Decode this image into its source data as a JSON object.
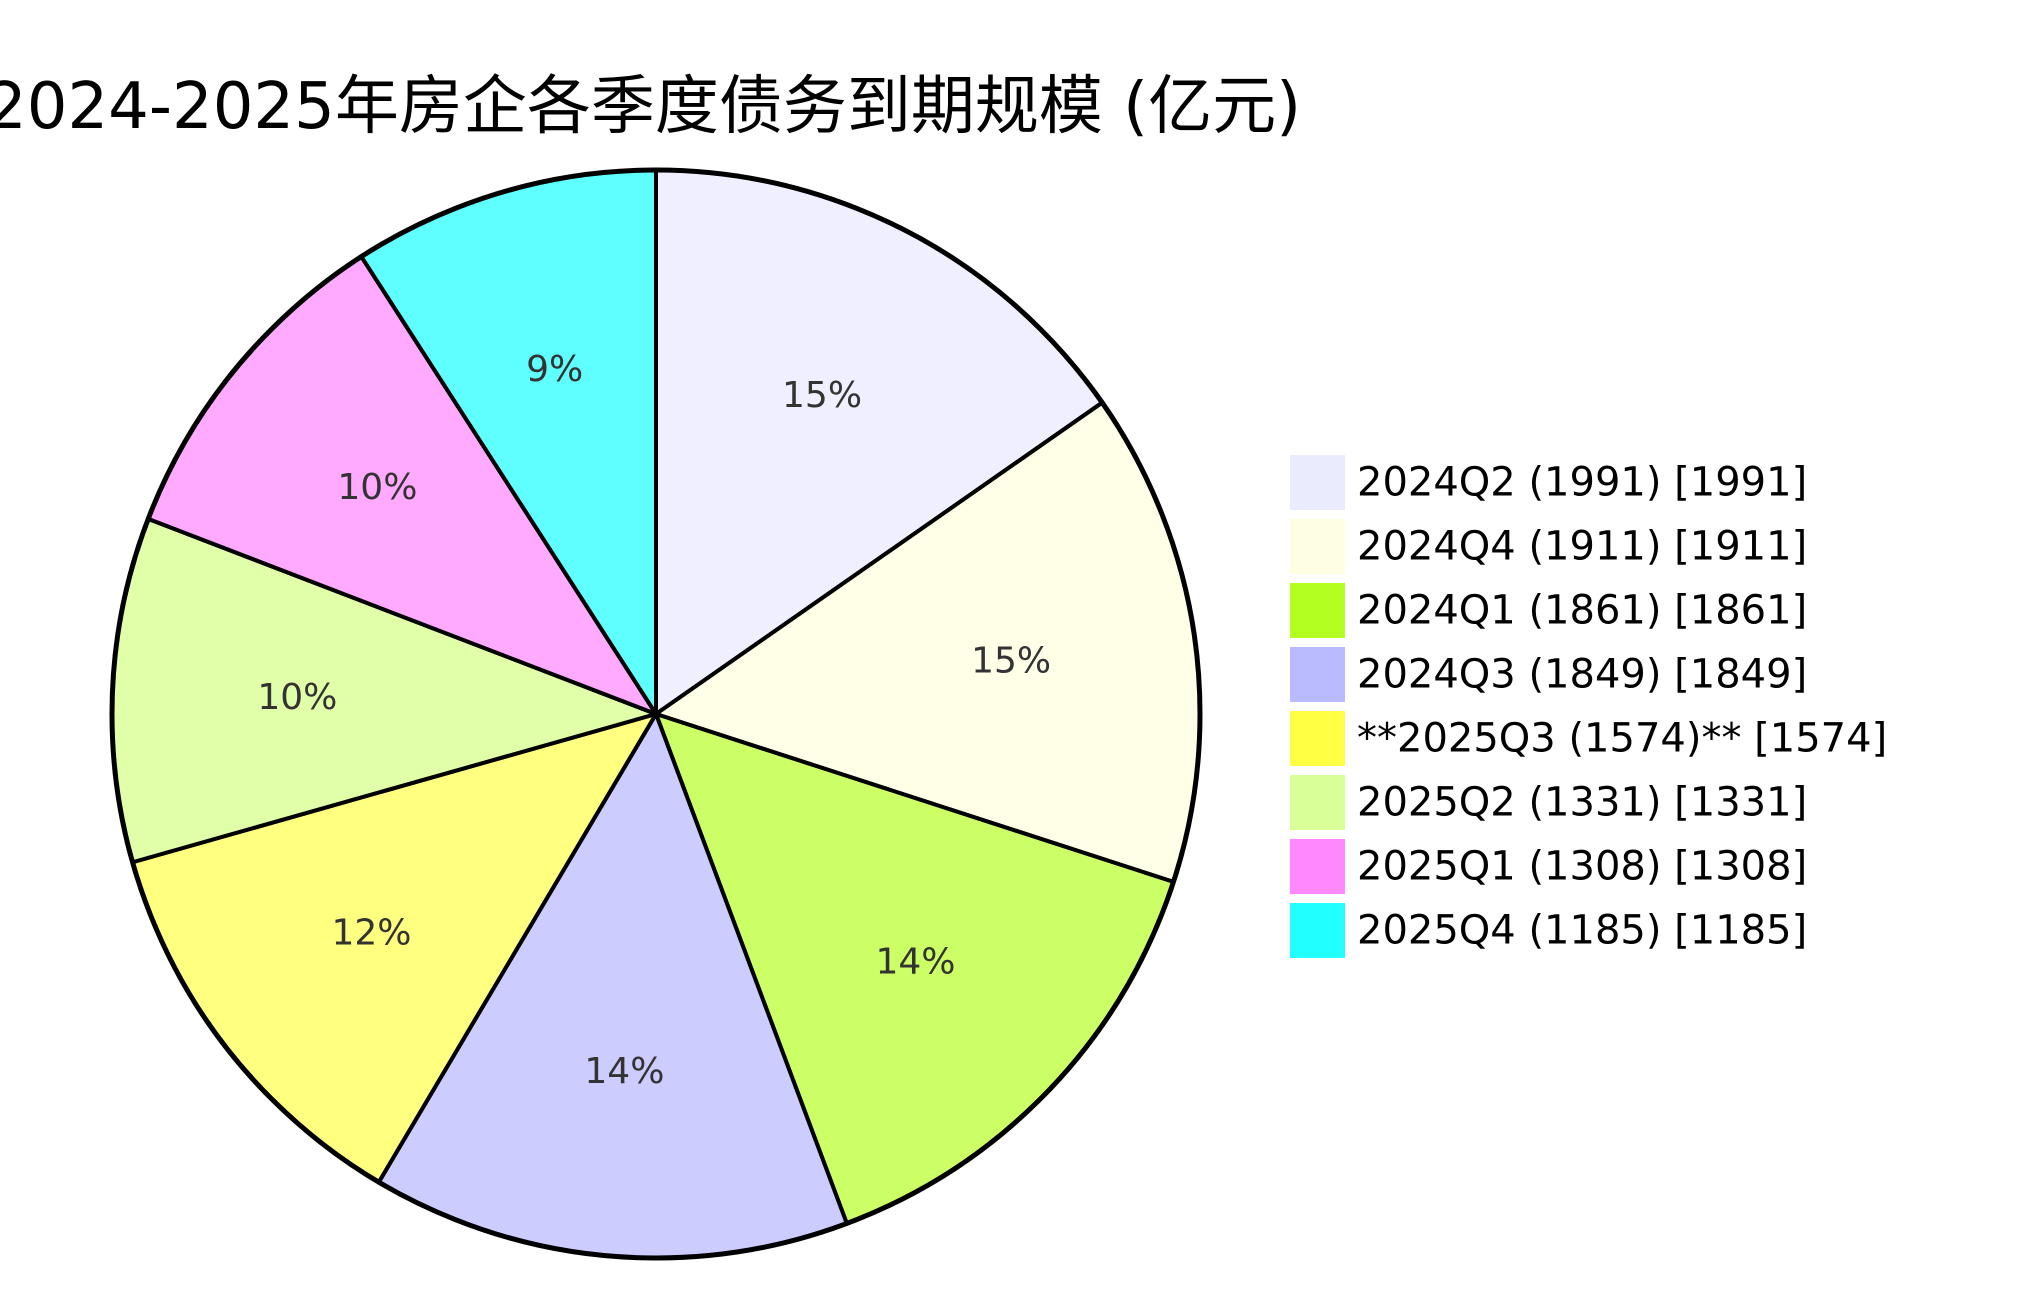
{
  "chart_data": {
    "type": "pie",
    "title": "2024-2025年房企各季度债务到期规模 (亿元)",
    "slices": [
      {
        "label": "2024Q2 (1991) [1991]",
        "value": 1991,
        "percent_label": "15%",
        "color": "#efefff",
        "legend_color": "#ebebfe"
      },
      {
        "label": "2024Q4 (1911) [1911]",
        "value": 1911,
        "percent_label": "15%",
        "color": "#ffffe8",
        "legend_color": "#fefee2"
      },
      {
        "label": "2024Q1 (1861) [1861]",
        "value": 1861,
        "percent_label": "14%",
        "color": "#ccff66",
        "legend_color": "#b3ff22"
      },
      {
        "label": "2024Q3 (1849) [1849]",
        "value": 1849,
        "percent_label": "14%",
        "color": "#ccccff",
        "legend_color": "#babaff"
      },
      {
        "label": "**2025Q3 (1574)** [1574]",
        "value": 1574,
        "percent_label": "12%",
        "color": "#ffff80",
        "legend_color": "#ffff44"
      },
      {
        "label": "2025Q2 (1331) [1331]",
        "value": 1331,
        "percent_label": "10%",
        "color": "#e0ffa8",
        "legend_color": "#d9ff99"
      },
      {
        "label": "2025Q1 (1308) [1308]",
        "value": 1308,
        "percent_label": "10%",
        "color": "#ffaaff",
        "legend_color": "#ff88ff"
      },
      {
        "label": "2025Q4 (1185) [1185]",
        "value": 1185,
        "percent_label": "9%",
        "color": "#60ffff",
        "legend_color": "#22ffff"
      }
    ],
    "start_angle_deg": 0,
    "direction": "clockwise",
    "legend_position": "right"
  }
}
